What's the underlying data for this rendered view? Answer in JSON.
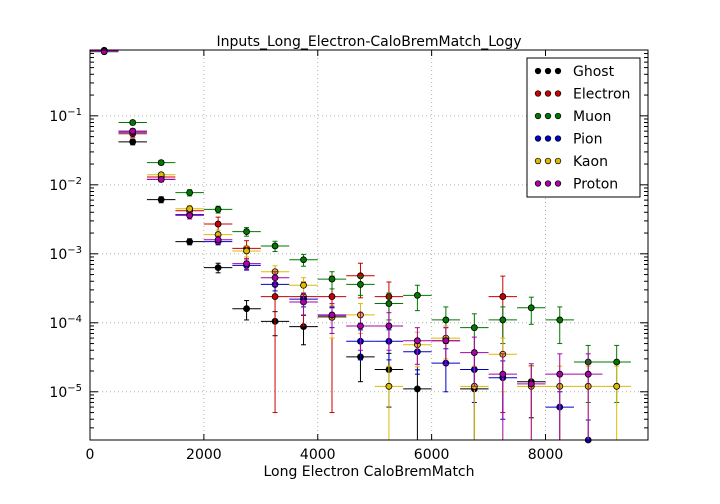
{
  "chart_data": {
    "type": "scatter",
    "title": "Inputs_Long_Electron-CaloBremMatch_Logy",
    "xlabel": "Long Electron CaloBremMatch",
    "ylabel": "",
    "xlim": [
      0,
      9800
    ],
    "ylim": [
      2e-06,
      0.9
    ],
    "yscale": "log",
    "grid": true,
    "legend_position": "top-right",
    "bin_halfwidth": 250,
    "x_ticks": [
      {
        "value": 0,
        "label": "0"
      },
      {
        "value": 2000,
        "label": "2000"
      },
      {
        "value": 4000,
        "label": "4000"
      },
      {
        "value": 6000,
        "label": "6000"
      },
      {
        "value": 8000,
        "label": "8000"
      }
    ],
    "y_ticks": [
      {
        "value": 0.1,
        "base": "10",
        "exp": "−1"
      },
      {
        "value": 0.01,
        "base": "10",
        "exp": "−2"
      },
      {
        "value": 0.001,
        "base": "10",
        "exp": "−3"
      },
      {
        "value": 0.0001,
        "base": "10",
        "exp": "−4"
      },
      {
        "value": 1e-05,
        "base": "10",
        "exp": "−5"
      }
    ],
    "series": [
      {
        "name": "Ghost",
        "color": "#000000",
        "points": [
          {
            "x": 250,
            "y": 0.89,
            "err": 0.02
          },
          {
            "x": 750,
            "y": 0.042,
            "err": 0.004
          },
          {
            "x": 1250,
            "y": 0.0061,
            "err": 0.0006
          },
          {
            "x": 1750,
            "y": 0.0015,
            "err": 0.00015
          },
          {
            "x": 2250,
            "y": 0.00063,
            "err": 0.0001
          },
          {
            "x": 2750,
            "y": 0.00016,
            "err": 5e-05
          },
          {
            "x": 3250,
            "y": 0.000105,
            "err": 4e-05
          },
          {
            "x": 3750,
            "y": 8.8e-05,
            "err": 4e-05
          },
          {
            "x": 4250,
            "y": 0.00012,
            "err": 5e-05
          },
          {
            "x": 4750,
            "y": 3.2e-05,
            "err": 1.8e-05
          },
          {
            "x": 5250,
            "y": 2.1e-05,
            "err": 1.5e-05
          },
          {
            "x": 5750,
            "y": 1.1e-05,
            "err": 9.8e-06
          },
          {
            "x": 6750,
            "y": 1.1e-05,
            "err": 9.8e-06
          },
          {
            "x": 7750,
            "y": 1.4e-05,
            "err": 9.8e-06
          }
        ]
      },
      {
        "name": "Electron",
        "color": "#cc0000",
        "points": [
          {
            "x": 250,
            "y": 0.88,
            "err": 0.02
          },
          {
            "x": 750,
            "y": 0.055,
            "err": 0.006
          },
          {
            "x": 1250,
            "y": 0.013,
            "err": 0.0012
          },
          {
            "x": 1750,
            "y": 0.0042,
            "err": 0.0006
          },
          {
            "x": 2250,
            "y": 0.0027,
            "err": 0.0007
          },
          {
            "x": 2750,
            "y": 0.0012,
            "err": 0.00035
          },
          {
            "x": 3250,
            "y": 0.00024,
            "err": 0.000235
          },
          {
            "x": 3750,
            "y": 0.00024,
            "err": 0.00015
          },
          {
            "x": 4250,
            "y": 0.00024,
            "err": 0.000235
          },
          {
            "x": 4750,
            "y": 0.00048,
            "err": 0.00025
          },
          {
            "x": 5250,
            "y": 0.00024,
            "err": 0.00015
          },
          {
            "x": 6250,
            "y": 5.5e-05,
            "err": 3e-05
          },
          {
            "x": 7250,
            "y": 0.00024,
            "err": 0.000235
          }
        ]
      },
      {
        "name": "Muon",
        "color": "#007700",
        "points": [
          {
            "x": 250,
            "y": 0.85,
            "err": 0.02
          },
          {
            "x": 750,
            "y": 0.08,
            "err": 0.006
          },
          {
            "x": 1250,
            "y": 0.021,
            "err": 0.0015
          },
          {
            "x": 1750,
            "y": 0.0077,
            "err": 0.0008
          },
          {
            "x": 2250,
            "y": 0.0044,
            "err": 0.0005
          },
          {
            "x": 2750,
            "y": 0.0021,
            "err": 0.0003
          },
          {
            "x": 3250,
            "y": 0.0013,
            "err": 0.00022
          },
          {
            "x": 3750,
            "y": 0.00082,
            "err": 0.00016
          },
          {
            "x": 4250,
            "y": 0.00043,
            "err": 0.00012
          },
          {
            "x": 4750,
            "y": 0.00036,
            "err": 0.00011
          },
          {
            "x": 5250,
            "y": 0.00019,
            "err": 8e-05
          },
          {
            "x": 5750,
            "y": 0.00025,
            "err": 0.0001
          },
          {
            "x": 6250,
            "y": 0.00011,
            "err": 6e-05
          },
          {
            "x": 6750,
            "y": 8.5e-05,
            "err": 5e-05
          },
          {
            "x": 7250,
            "y": 0.00011,
            "err": 6e-05
          },
          {
            "x": 7750,
            "y": 0.000165,
            "err": 7e-05
          },
          {
            "x": 8250,
            "y": 0.00011,
            "err": 6e-05
          },
          {
            "x": 8750,
            "y": 2.7e-05,
            "err": 2e-05
          },
          {
            "x": 9250,
            "y": 2.7e-05,
            "err": 2e-05
          }
        ]
      },
      {
        "name": "Pion",
        "color": "#0000cc",
        "points": [
          {
            "x": 250,
            "y": 0.87,
            "err": 0.02
          },
          {
            "x": 750,
            "y": 0.058,
            "err": 0.004
          },
          {
            "x": 1250,
            "y": 0.012,
            "err": 0.0008
          },
          {
            "x": 1750,
            "y": 0.0037,
            "err": 0.0003
          },
          {
            "x": 2250,
            "y": 0.0015,
            "err": 0.00015
          },
          {
            "x": 2750,
            "y": 0.00068,
            "err": 0.0001
          },
          {
            "x": 3250,
            "y": 0.00036,
            "err": 7e-05
          },
          {
            "x": 3750,
            "y": 0.00022,
            "err": 5e-05
          },
          {
            "x": 4250,
            "y": 0.000125,
            "err": 4e-05
          },
          {
            "x": 4750,
            "y": 5.4e-05,
            "err": 2.5e-05
          },
          {
            "x": 5250,
            "y": 5.4e-05,
            "err": 2.5e-05
          },
          {
            "x": 5750,
            "y": 3.8e-05,
            "err": 2e-05
          },
          {
            "x": 6250,
            "y": 2.6e-05,
            "err": 1.6e-05
          },
          {
            "x": 6750,
            "y": 2.1e-05,
            "err": 1.4e-05
          },
          {
            "x": 7250,
            "y": 1.6e-05,
            "err": 1.2e-05
          },
          {
            "x": 8250,
            "y": 6e-06,
            "err": 4e-06
          },
          {
            "x": 8750,
            "y": 2e-06,
            "err": 1.9e-06
          }
        ]
      },
      {
        "name": "Kaon",
        "color": "#ddbb00",
        "points": [
          {
            "x": 250,
            "y": 0.86,
            "err": 0.02
          },
          {
            "x": 750,
            "y": 0.06,
            "err": 0.005
          },
          {
            "x": 1250,
            "y": 0.014,
            "err": 0.001
          },
          {
            "x": 1750,
            "y": 0.0045,
            "err": 0.0005
          },
          {
            "x": 2250,
            "y": 0.0019,
            "err": 0.0003
          },
          {
            "x": 2750,
            "y": 0.0011,
            "err": 0.0002
          },
          {
            "x": 3250,
            "y": 0.00055,
            "err": 0.00012
          },
          {
            "x": 3750,
            "y": 0.00035,
            "err": 0.0001
          },
          {
            "x": 4250,
            "y": 0.00012,
            "err": 6e-05
          },
          {
            "x": 4750,
            "y": 0.00013,
            "err": 6e-05
          },
          {
            "x": 5250,
            "y": 1.2e-05,
            "err": 1.15e-05
          },
          {
            "x": 5750,
            "y": 4.8e-05,
            "err": 2.5e-05
          },
          {
            "x": 6250,
            "y": 6e-05,
            "err": 3e-05
          },
          {
            "x": 6750,
            "y": 1.2e-05,
            "err": 1.15e-05
          },
          {
            "x": 7250,
            "y": 3.5e-05,
            "err": 2.5e-05
          },
          {
            "x": 7750,
            "y": 1.2e-05,
            "err": 1.15e-05
          },
          {
            "x": 8250,
            "y": 1.2e-05,
            "err": 1.15e-05
          },
          {
            "x": 8750,
            "y": 1.2e-05,
            "err": 1.15e-05
          },
          {
            "x": 9250,
            "y": 1.2e-05,
            "err": 1.15e-05
          }
        ]
      },
      {
        "name": "Proton",
        "color": "#aa00aa",
        "points": [
          {
            "x": 250,
            "y": 0.86,
            "err": 0.02
          },
          {
            "x": 750,
            "y": 0.06,
            "err": 0.005
          },
          {
            "x": 1250,
            "y": 0.012,
            "err": 0.001
          },
          {
            "x": 1750,
            "y": 0.0036,
            "err": 0.0004
          },
          {
            "x": 2250,
            "y": 0.0016,
            "err": 0.0002
          },
          {
            "x": 2750,
            "y": 0.00072,
            "err": 0.00012
          },
          {
            "x": 3250,
            "y": 0.00045,
            "err": 0.0001
          },
          {
            "x": 3750,
            "y": 0.0002,
            "err": 7e-05
          },
          {
            "x": 4250,
            "y": 0.00013,
            "err": 6e-05
          },
          {
            "x": 4750,
            "y": 9e-05,
            "err": 5e-05
          },
          {
            "x": 5250,
            "y": 9e-05,
            "err": 5e-05
          },
          {
            "x": 5750,
            "y": 5.5e-05,
            "err": 3e-05
          },
          {
            "x": 6250,
            "y": 5.5e-05,
            "err": 3e-05
          },
          {
            "x": 6750,
            "y": 3.7e-05,
            "err": 2.5e-05
          },
          {
            "x": 7250,
            "y": 1.8e-05,
            "err": 1.75e-05
          },
          {
            "x": 7750,
            "y": 1.3e-05,
            "err": 1.25e-05
          },
          {
            "x": 8250,
            "y": 1.8e-05,
            "err": 1.75e-05
          },
          {
            "x": 8750,
            "y": 1.8e-05,
            "err": 1.75e-05
          }
        ]
      }
    ]
  }
}
